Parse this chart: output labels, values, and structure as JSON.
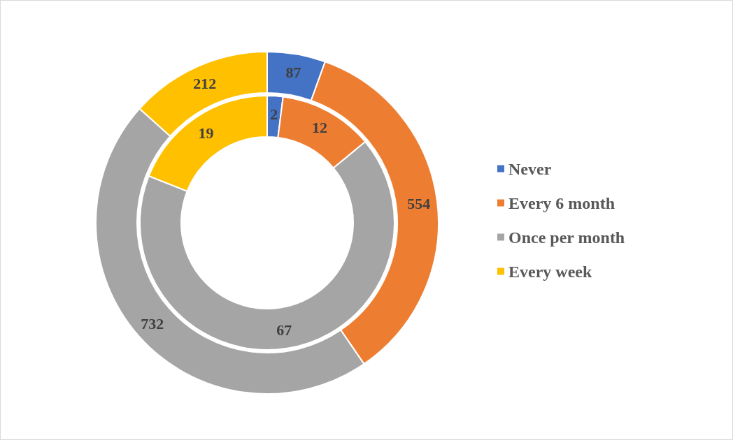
{
  "chart_data": {
    "type": "donut",
    "categories": [
      "Never",
      "Every 6 month",
      "Once per month",
      "Every week"
    ],
    "colors": [
      "#4472c4",
      "#ed7d31",
      "#a5a5a5",
      "#ffc000"
    ],
    "series": [
      {
        "values": [
          2,
          12,
          67,
          19
        ]
      },
      {
        "values": [
          87,
          554,
          732,
          212
        ]
      }
    ],
    "data_labels": true,
    "legend": "right"
  }
}
